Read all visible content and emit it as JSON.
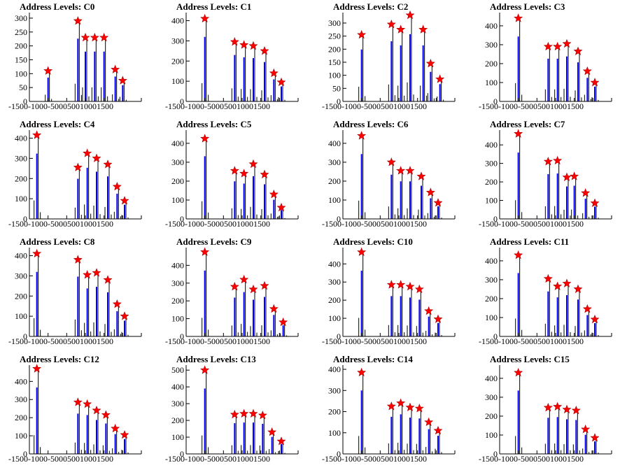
{
  "colors": {
    "axis": "#000000",
    "hist_main": "#0000ff",
    "hist_secondary": "#000000",
    "marker": "#ff0000"
  },
  "marker_icon": "red-star-marker",
  "chart_data": [
    {
      "type": "bar",
      "title": "Address Levels: C0",
      "xlim": [
        -1500,
        1500
      ],
      "ylim": [
        0,
        320
      ],
      "yticks": [
        0,
        50,
        100,
        150,
        200,
        250,
        300
      ],
      "xticks": [
        -1500,
        -1000,
        -500,
        0,
        500,
        1000,
        1500
      ],
      "peaks": [
        {
          "x": -1000,
          "y": 110
        },
        {
          "x": -200,
          "y": 290
        },
        {
          "x": 0,
          "y": 230
        },
        {
          "x": 250,
          "y": 230
        },
        {
          "x": 500,
          "y": 230
        },
        {
          "x": 800,
          "y": 115
        },
        {
          "x": 1000,
          "y": 75
        }
      ]
    },
    {
      "type": "bar",
      "title": "Address Levels: C1",
      "xlim": [
        -1500,
        1500
      ],
      "ylim": [
        0,
        440
      ],
      "yticks": [
        0,
        100,
        200,
        300,
        400
      ],
      "xticks": [
        -1500,
        -1000,
        -500,
        0,
        500,
        1000,
        1500
      ],
      "peaks": [
        {
          "x": -1000,
          "y": 410
        },
        {
          "x": -200,
          "y": 295
        },
        {
          "x": 50,
          "y": 280
        },
        {
          "x": 300,
          "y": 275
        },
        {
          "x": 600,
          "y": 250
        },
        {
          "x": 850,
          "y": 140
        },
        {
          "x": 1050,
          "y": 95
        }
      ]
    },
    {
      "type": "bar",
      "title": "Address Levels: C2",
      "xlim": [
        -1500,
        1500
      ],
      "ylim": [
        0,
        340
      ],
      "yticks": [
        0,
        50,
        100,
        150,
        200,
        250,
        300
      ],
      "xticks": [
        -1500,
        -1000,
        -500,
        0,
        500,
        1000,
        1500
      ],
      "peaks": [
        {
          "x": -1000,
          "y": 255
        },
        {
          "x": -200,
          "y": 295
        },
        {
          "x": 50,
          "y": 275
        },
        {
          "x": 300,
          "y": 330
        },
        {
          "x": 650,
          "y": 275
        },
        {
          "x": 850,
          "y": 145
        },
        {
          "x": 1100,
          "y": 85
        }
      ]
    },
    {
      "type": "bar",
      "title": "Address Levels: C3",
      "xlim": [
        -1500,
        1500
      ],
      "ylim": [
        0,
        470
      ],
      "yticks": [
        0,
        100,
        200,
        300,
        400
      ],
      "xticks": [
        -1500,
        -1000,
        -500,
        0,
        500,
        1000,
        1500
      ],
      "peaks": [
        {
          "x": -1000,
          "y": 440
        },
        {
          "x": -200,
          "y": 290
        },
        {
          "x": 50,
          "y": 290
        },
        {
          "x": 300,
          "y": 305
        },
        {
          "x": 600,
          "y": 265
        },
        {
          "x": 850,
          "y": 160
        },
        {
          "x": 1050,
          "y": 100
        }
      ]
    },
    {
      "type": "bar",
      "title": "Address Levels: C4",
      "xlim": [
        -1500,
        1500
      ],
      "ylim": [
        0,
        440
      ],
      "yticks": [
        0,
        100,
        200,
        300,
        400
      ],
      "xticks": [
        -1500,
        -1000,
        -500,
        0,
        500,
        1000,
        1500
      ],
      "peaks": [
        {
          "x": -1300,
          "y": 415
        },
        {
          "x": -200,
          "y": 255
        },
        {
          "x": 50,
          "y": 325
        },
        {
          "x": 300,
          "y": 300
        },
        {
          "x": 600,
          "y": 270
        },
        {
          "x": 850,
          "y": 160
        },
        {
          "x": 1050,
          "y": 90
        }
      ]
    },
    {
      "type": "bar",
      "title": "Address Levels: C5",
      "xlim": [
        -1500,
        1500
      ],
      "ylim": [
        0,
        470
      ],
      "yticks": [
        0,
        100,
        200,
        300,
        400
      ],
      "xticks": [
        -1500,
        -1000,
        -500,
        0,
        500,
        1000,
        1500
      ],
      "peaks": [
        {
          "x": -1000,
          "y": 425
        },
        {
          "x": -200,
          "y": 255
        },
        {
          "x": 50,
          "y": 240
        },
        {
          "x": 300,
          "y": 290
        },
        {
          "x": 600,
          "y": 235
        },
        {
          "x": 850,
          "y": 130
        },
        {
          "x": 1050,
          "y": 60
        }
      ]
    },
    {
      "type": "bar",
      "title": "Address Levels: C6",
      "xlim": [
        -1500,
        1500
      ],
      "ylim": [
        0,
        470
      ],
      "yticks": [
        0,
        100,
        200,
        300,
        400
      ],
      "xticks": [
        -1500,
        -1000,
        -500,
        0,
        500,
        1000,
        1500
      ],
      "peaks": [
        {
          "x": -1000,
          "y": 440
        },
        {
          "x": -200,
          "y": 300
        },
        {
          "x": 50,
          "y": 255
        },
        {
          "x": 300,
          "y": 255
        },
        {
          "x": 600,
          "y": 225
        },
        {
          "x": 850,
          "y": 140
        },
        {
          "x": 1050,
          "y": 85
        }
      ]
    },
    {
      "type": "bar",
      "title": "Address Levels: C7",
      "xlim": [
        -1500,
        1500
      ],
      "ylim": [
        0,
        480
      ],
      "yticks": [
        0,
        100,
        200,
        300,
        400
      ],
      "xticks": [
        -1500,
        -1000,
        -500,
        0,
        500,
        1000,
        1500
      ],
      "peaks": [
        {
          "x": -1000,
          "y": 460
        },
        {
          "x": -200,
          "y": 310
        },
        {
          "x": 50,
          "y": 315
        },
        {
          "x": 300,
          "y": 225
        },
        {
          "x": 500,
          "y": 230
        },
        {
          "x": 800,
          "y": 140
        },
        {
          "x": 1050,
          "y": 85
        }
      ]
    },
    {
      "type": "bar",
      "title": "Address Levels: C8",
      "xlim": [
        -1500,
        1500
      ],
      "ylim": [
        0,
        440
      ],
      "yticks": [
        0,
        100,
        200,
        300,
        400
      ],
      "xticks": [
        -1500,
        -1000,
        -500,
        0,
        500,
        1000,
        1500
      ],
      "peaks": [
        {
          "x": -1300,
          "y": 410
        },
        {
          "x": -200,
          "y": 380
        },
        {
          "x": 50,
          "y": 305
        },
        {
          "x": 300,
          "y": 315
        },
        {
          "x": 600,
          "y": 280
        },
        {
          "x": 850,
          "y": 160
        },
        {
          "x": 1050,
          "y": 100
        }
      ]
    },
    {
      "type": "bar",
      "title": "Address Levels: C9",
      "xlim": [
        -1500,
        1500
      ],
      "ylim": [
        0,
        500
      ],
      "yticks": [
        0,
        100,
        200,
        300,
        400
      ],
      "xticks": [
        -1500,
        -1000,
        -500,
        0,
        500,
        1000,
        1500
      ],
      "peaks": [
        {
          "x": -1000,
          "y": 475
        },
        {
          "x": -200,
          "y": 280
        },
        {
          "x": 50,
          "y": 320
        },
        {
          "x": 300,
          "y": 265
        },
        {
          "x": 600,
          "y": 285
        },
        {
          "x": 850,
          "y": 155
        },
        {
          "x": 1100,
          "y": 80
        }
      ]
    },
    {
      "type": "bar",
      "title": "Address Levels: C10",
      "xlim": [
        -1500,
        1500
      ],
      "ylim": [
        0,
        490
      ],
      "yticks": [
        0,
        100,
        200,
        300,
        400
      ],
      "xticks": [
        -1500,
        -1000,
        -500,
        0,
        500,
        1000,
        1500
      ],
      "peaks": [
        {
          "x": -1000,
          "y": 465
        },
        {
          "x": -200,
          "y": 285
        },
        {
          "x": 50,
          "y": 285
        },
        {
          "x": 300,
          "y": 275
        },
        {
          "x": 550,
          "y": 260
        },
        {
          "x": 800,
          "y": 140
        },
        {
          "x": 1050,
          "y": 95
        }
      ]
    },
    {
      "type": "bar",
      "title": "Address Levels: C11",
      "xlim": [
        -1500,
        1500
      ],
      "ylim": [
        0,
        470
      ],
      "yticks": [
        0,
        100,
        200,
        300,
        400
      ],
      "xticks": [
        -1500,
        -1000,
        -500,
        0,
        500,
        1000,
        1500
      ],
      "peaks": [
        {
          "x": -1000,
          "y": 430
        },
        {
          "x": -200,
          "y": 305
        },
        {
          "x": 50,
          "y": 265
        },
        {
          "x": 300,
          "y": 280
        },
        {
          "x": 600,
          "y": 250
        },
        {
          "x": 850,
          "y": 145
        },
        {
          "x": 1050,
          "y": 90
        }
      ]
    },
    {
      "type": "bar",
      "title": "Address Levels: C12",
      "xlim": [
        -1500,
        1500
      ],
      "ylim": [
        0,
        490
      ],
      "yticks": [
        0,
        100,
        200,
        300,
        400
      ],
      "xticks": [
        -1500,
        -1000,
        -500,
        0,
        500,
        1000,
        1500
      ],
      "peaks": [
        {
          "x": -1300,
          "y": 470
        },
        {
          "x": -200,
          "y": 285
        },
        {
          "x": 50,
          "y": 275
        },
        {
          "x": 300,
          "y": 240
        },
        {
          "x": 550,
          "y": 215
        },
        {
          "x": 800,
          "y": 140
        },
        {
          "x": 1050,
          "y": 105
        }
      ]
    },
    {
      "type": "bar",
      "title": "Address Levels: C13",
      "xlim": [
        -1500,
        1500
      ],
      "ylim": [
        0,
        530
      ],
      "yticks": [
        0,
        100,
        200,
        300,
        400,
        500
      ],
      "xticks": [
        -1500,
        -1000,
        -500,
        0,
        500,
        1000,
        1500
      ],
      "peaks": [
        {
          "x": -1000,
          "y": 500
        },
        {
          "x": -200,
          "y": 235
        },
        {
          "x": 50,
          "y": 240
        },
        {
          "x": 300,
          "y": 240
        },
        {
          "x": 550,
          "y": 230
        },
        {
          "x": 800,
          "y": 130
        },
        {
          "x": 1050,
          "y": 75
        }
      ]
    },
    {
      "type": "bar",
      "title": "Address Levels: C14",
      "xlim": [
        -1500,
        1500
      ],
      "ylim": [
        0,
        420
      ],
      "yticks": [
        0,
        100,
        200,
        300,
        400
      ],
      "xticks": [
        -1500,
        -1000,
        -500,
        0,
        500,
        1000,
        1500
      ],
      "peaks": [
        {
          "x": -1000,
          "y": 385
        },
        {
          "x": -200,
          "y": 225
        },
        {
          "x": 50,
          "y": 240
        },
        {
          "x": 300,
          "y": 220
        },
        {
          "x": 550,
          "y": 215
        },
        {
          "x": 800,
          "y": 150
        },
        {
          "x": 1050,
          "y": 110
        }
      ]
    },
    {
      "type": "bar",
      "title": "Address Levels: C15",
      "xlim": [
        -1500,
        1500
      ],
      "ylim": [
        0,
        470
      ],
      "yticks": [
        0,
        100,
        200,
        300,
        400
      ],
      "xticks": [
        -1500,
        -1000,
        -500,
        0,
        500,
        1000,
        1500
      ],
      "peaks": [
        {
          "x": -1000,
          "y": 430
        },
        {
          "x": -200,
          "y": 245
        },
        {
          "x": 50,
          "y": 250
        },
        {
          "x": 300,
          "y": 235
        },
        {
          "x": 550,
          "y": 230
        },
        {
          "x": 800,
          "y": 130
        },
        {
          "x": 1050,
          "y": 85
        }
      ]
    }
  ]
}
